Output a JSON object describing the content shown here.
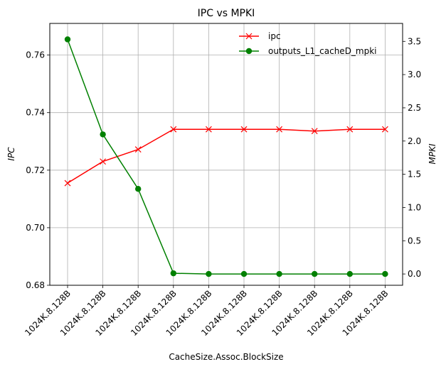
{
  "chart_data": {
    "type": "line",
    "title": "IPC vs MPKI",
    "xlabel": "CacheSize.Assoc.BlockSize",
    "ylabel_left": "IPC",
    "ylabel_right": "MPKI",
    "categories": [
      "1024K.8.128B",
      "1024K.8.128B",
      "1024K.8.128B",
      "1024K.8.128B",
      "1024K.8.128B",
      "1024K.8.128B",
      "1024K.8.128B",
      "1024K.8.128B",
      "1024K.8.128B",
      "1024K.8.128B"
    ],
    "grid": true,
    "legend_position": "top-right",
    "ylim_left": [
      0.68,
      0.771
    ],
    "ylim_right": [
      -0.17,
      3.77
    ],
    "yticks_left": [
      "0.68",
      "0.70",
      "0.72",
      "0.74",
      "0.76"
    ],
    "yticks_right": [
      "0.0",
      "0.5",
      "1.0",
      "1.5",
      "2.0",
      "2.5",
      "3.0",
      "3.5"
    ],
    "series": [
      {
        "name": "ipc",
        "axis": "left",
        "color": "#ff0000",
        "marker": "x",
        "values": [
          0.7155,
          0.723,
          0.7272,
          0.7342,
          0.7342,
          0.7342,
          0.7342,
          0.7336,
          0.7342,
          0.7342
        ]
      },
      {
        "name": "outputs_L1_cacheD_mpki",
        "axis": "right",
        "color": "#008000",
        "marker": "o",
        "values": [
          3.53,
          2.1,
          1.28,
          0.01,
          0.0,
          0.0,
          0.0,
          0.0,
          0.0,
          0.0
        ]
      }
    ]
  }
}
